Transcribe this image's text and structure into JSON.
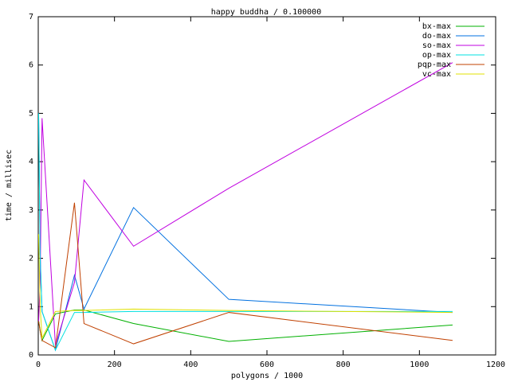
{
  "chart_data": {
    "type": "line",
    "title": "happy buddha / 0.100000",
    "x_label": "polygons / 1000",
    "y_label": "time / millisec",
    "x": [
      1,
      5,
      10,
      45,
      95,
      120,
      250,
      500,
      1087
    ],
    "series": [
      {
        "name": "bx-max",
        "color": "#00b000",
        "values": [
          0.7,
          0.5,
          0.3,
          0.85,
          0.93,
          0.93,
          0.65,
          0.28,
          0.62
        ]
      },
      {
        "name": "do-max",
        "color": "#0070e0",
        "values": [
          5.0,
          2.1,
          0.9,
          0.1,
          1.65,
          0.95,
          3.05,
          1.15,
          0.88
        ]
      },
      {
        "name": "so-max",
        "color": "#c000e0",
        "values": [
          0.7,
          1.5,
          4.9,
          0.2,
          1.5,
          3.62,
          2.25,
          3.45,
          6.05
        ]
      },
      {
        "name": "op-max",
        "color": "#00e0e0",
        "values": [
          5.0,
          2.0,
          0.9,
          0.1,
          0.88,
          0.88,
          0.9,
          0.9,
          0.9
        ]
      },
      {
        "name": "pqp-max",
        "color": "#c04000",
        "values": [
          0.7,
          0.5,
          0.3,
          0.15,
          3.15,
          0.65,
          0.23,
          0.88,
          0.3
        ]
      },
      {
        "name": "vc-max",
        "color": "#e0e000",
        "values": [
          2.5,
          1.0,
          0.35,
          0.9,
          0.92,
          0.92,
          0.95,
          0.92,
          0.88
        ]
      }
    ],
    "xlim": [
      0,
      1200
    ],
    "xticks": [
      0,
      200,
      400,
      600,
      800,
      1000,
      1200
    ],
    "ylim": [
      0,
      7
    ],
    "yticks": [
      0,
      1,
      2,
      3,
      4,
      5,
      6,
      7
    ],
    "legend": "top-right"
  }
}
